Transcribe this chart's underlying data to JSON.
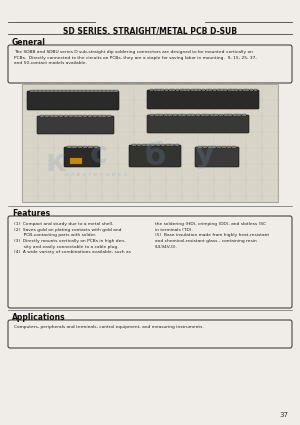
{
  "bg_color": "#f0ede8",
  "title": "SD SERIES. STRAIGHT/METAL PCB D-SUB",
  "page_number": "37",
  "general_heading": "General",
  "general_text": "The SDBB and SDBU series D sub-straight dip soldering connectors are designed to be mounted vertically on\nPCBs.  Directly connected to the circuits on PCBs, they are a staple for saving labor in mounting.  9, 15, 25, 37,\nand 50-contact models available.",
  "features_heading": "Features",
  "features_text_left": "(1)  Compact and sturdy due to a metal shell.\n(2)  Saves gold on plating contacts with gold and\n       PCB-contacting parts with solder.\n(3)  Directly mounts vertically on PCBs in high den-\n       sity and easily connectable to a cable plug.\n(4)  A wide variety of combinations available, such as",
  "features_text_right": "the soldering (HD), crimping (DD), and slotless (SC\nin terminals (TD).\n(5)  Base insulation made from highly heat-resistant\nand chemical-resistant glass - containing resin\n(UL94V-0).",
  "applications_heading": "Applications",
  "applications_text": "Computers, peripherals and terminals, control equipment, and measuring instruments.",
  "line_color": "#444444",
  "box_edge_color": "#444444",
  "heading_color": "#111111",
  "text_color": "#222222",
  "watermark_letters": [
    "к",
    "с",
    "б",
    "у"
  ],
  "watermark_color": "#7799bb",
  "watermark_alpha": 0.22,
  "grid_color": "#c8c5b8",
  "connector_colors": [
    "#3a3a3a",
    "#3a3a3a",
    "#555550",
    "#444440",
    "#333330",
    "#444440",
    "#555550"
  ],
  "gold_color": "#cc8800"
}
